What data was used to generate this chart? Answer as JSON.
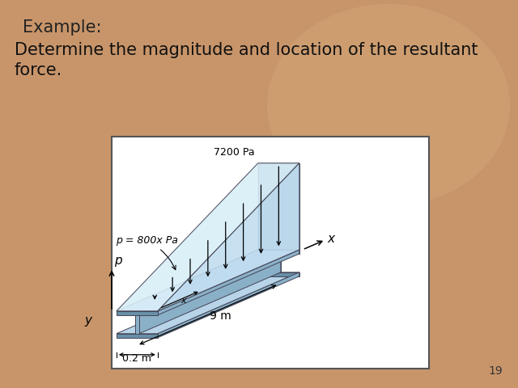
{
  "title": "Example:",
  "body_line1": "Determine the magnitude and location of the resultant",
  "body_line2": "force.",
  "page_number": "19",
  "bg_color": "#c8956a",
  "diagram_bg": "white",
  "annotations": {
    "pressure_eq": "p = 800x Pa",
    "pressure_val": "7200 Pa",
    "length": "9 m",
    "width": "0.2 m",
    "x_label": "x",
    "p_label": "p",
    "y_label": "y"
  },
  "beam_color_top": "#b8d4e8",
  "beam_color_side": "#8ab0c8",
  "beam_color_dark": "#6890a8",
  "beam_color_bottom": "#a0c0d8",
  "pressure_color": "#c0ddf0",
  "pressure_top_color": "#d8eef8",
  "edge_color": "#444455",
  "title_fontsize": 15,
  "body_fontsize": 15,
  "page_fontsize": 10
}
